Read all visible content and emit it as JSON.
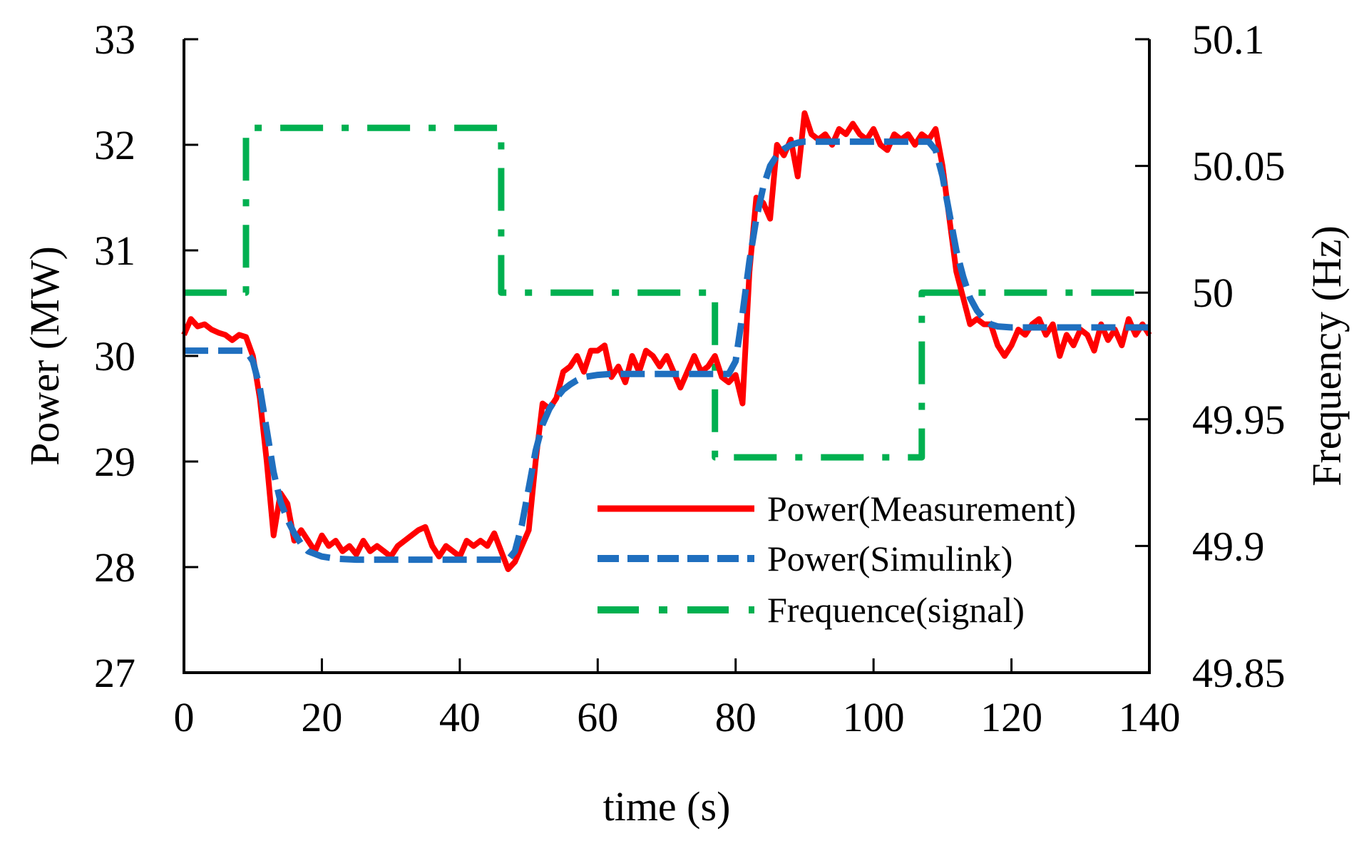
{
  "chart_data": {
    "type": "line",
    "title": "",
    "xlabel": "time (s)",
    "ylabel": "Power (MW)",
    "y2label": "Frequency (Hz)",
    "xlim": [
      0,
      140
    ],
    "ylim": [
      27,
      33
    ],
    "y2lim": [
      49.85,
      50.1
    ],
    "xticks": [
      0,
      20,
      40,
      60,
      80,
      100,
      120,
      140
    ],
    "xtick_labels": [
      "0",
      "20",
      "40",
      "60",
      "80",
      "100",
      "120",
      "140"
    ],
    "yticks": [
      27,
      28,
      29,
      30,
      31,
      32,
      33
    ],
    "ytick_labels": [
      "27",
      "28",
      "29",
      "30",
      "31",
      "32",
      "33"
    ],
    "y2ticks": [
      49.85,
      49.9,
      49.95,
      50,
      50.05,
      50.1
    ],
    "y2tick_labels": [
      "49.85",
      "49.9",
      "49.95",
      "50",
      "50.05",
      "50.1"
    ],
    "grid": false,
    "legend_position": "bottom-right",
    "series": [
      {
        "name": "Power(Measurement)",
        "axis": "left",
        "color": "#ff0000",
        "style": "solid",
        "x": [
          0,
          1,
          2,
          3,
          4,
          5,
          6,
          7,
          8,
          9,
          10,
          11,
          12,
          13,
          14,
          15,
          16,
          17,
          18,
          19,
          20,
          21,
          22,
          23,
          24,
          25,
          26,
          27,
          28,
          29,
          30,
          31,
          32,
          33,
          34,
          35,
          36,
          37,
          38,
          39,
          40,
          41,
          42,
          43,
          44,
          45,
          46,
          47,
          48,
          49,
          50,
          51,
          52,
          53,
          54,
          55,
          56,
          57,
          58,
          59,
          60,
          61,
          62,
          63,
          64,
          65,
          66,
          67,
          68,
          69,
          70,
          71,
          72,
          73,
          74,
          75,
          76,
          77,
          78,
          79,
          80,
          81,
          82,
          83,
          84,
          85,
          86,
          87,
          88,
          89,
          90,
          91,
          92,
          93,
          94,
          95,
          96,
          97,
          98,
          99,
          100,
          101,
          102,
          103,
          104,
          105,
          106,
          107,
          108,
          109,
          110,
          111,
          112,
          113,
          114,
          115,
          116,
          117,
          118,
          119,
          120,
          121,
          122,
          123,
          124,
          125,
          126,
          127,
          128,
          129,
          130,
          131,
          132,
          133,
          134,
          135,
          136,
          137,
          138,
          139,
          140
        ],
        "values": [
          30.2,
          30.35,
          30.28,
          30.3,
          30.25,
          30.22,
          30.2,
          30.15,
          30.2,
          30.18,
          30.0,
          29.6,
          29.0,
          28.3,
          28.7,
          28.6,
          28.25,
          28.35,
          28.25,
          28.15,
          28.3,
          28.2,
          28.25,
          28.15,
          28.2,
          28.12,
          28.25,
          28.15,
          28.2,
          28.15,
          28.1,
          28.2,
          28.25,
          28.3,
          28.35,
          28.38,
          28.2,
          28.1,
          28.2,
          28.15,
          28.1,
          28.25,
          28.2,
          28.25,
          28.2,
          28.32,
          28.15,
          27.98,
          28.05,
          28.2,
          28.35,
          29.0,
          29.55,
          29.5,
          29.6,
          29.85,
          29.9,
          30.0,
          29.85,
          30.05,
          30.05,
          30.1,
          29.8,
          29.9,
          29.75,
          30.0,
          29.85,
          30.05,
          30.0,
          29.9,
          30.0,
          29.85,
          29.7,
          29.85,
          30.0,
          29.85,
          29.9,
          30.0,
          29.8,
          29.75,
          29.82,
          29.55,
          30.8,
          31.5,
          31.45,
          31.3,
          32.0,
          31.9,
          32.05,
          31.7,
          32.3,
          32.1,
          32.05,
          32.1,
          32.0,
          32.15,
          32.1,
          32.2,
          32.1,
          32.05,
          32.15,
          32.0,
          31.95,
          32.1,
          32.05,
          32.1,
          32.0,
          32.1,
          32.05,
          32.15,
          31.8,
          31.3,
          30.8,
          30.55,
          30.3,
          30.35,
          30.3,
          30.3,
          30.1,
          30.0,
          30.1,
          30.25,
          30.2,
          30.3,
          30.35,
          30.2,
          30.3,
          30.0,
          30.2,
          30.1,
          30.25,
          30.2,
          30.05,
          30.3,
          30.15,
          30.25,
          30.1,
          30.35,
          30.2,
          30.3,
          30.2
        ]
      },
      {
        "name": "Power(Simulink)",
        "axis": "left",
        "color": "#1f6fbf",
        "style": "dashed",
        "x": [
          0,
          5,
          9,
          10,
          11,
          12,
          13,
          14,
          15,
          16,
          17,
          18,
          20,
          22,
          25,
          30,
          40,
          47,
          48,
          49,
          50,
          51,
          52,
          53,
          54,
          55,
          56,
          57,
          58,
          60,
          62,
          65,
          70,
          75,
          79,
          80,
          81,
          82,
          83,
          84,
          85,
          86,
          87,
          88,
          89,
          90,
          95,
          100,
          105,
          108,
          109,
          110,
          111,
          112,
          113,
          114,
          115,
          116,
          117,
          118,
          120,
          125,
          130,
          140
        ],
        "values": [
          30.05,
          30.05,
          30.05,
          29.95,
          29.7,
          29.3,
          28.9,
          28.62,
          28.45,
          28.32,
          28.22,
          28.15,
          28.1,
          28.08,
          28.07,
          28.07,
          28.07,
          28.07,
          28.15,
          28.4,
          28.75,
          29.1,
          29.35,
          29.5,
          29.6,
          29.68,
          29.73,
          29.77,
          29.8,
          29.82,
          29.83,
          29.83,
          29.83,
          29.83,
          29.83,
          29.95,
          30.4,
          30.9,
          31.3,
          31.6,
          31.8,
          31.9,
          31.96,
          32.0,
          32.02,
          32.03,
          32.03,
          32.03,
          32.03,
          32.03,
          31.95,
          31.7,
          31.35,
          31.0,
          30.75,
          30.55,
          30.43,
          30.35,
          30.3,
          30.28,
          30.27,
          30.27,
          30.27,
          30.27
        ]
      },
      {
        "name": "Frequence(signal)",
        "axis": "right",
        "color": "#00b050",
        "style": "dashdot",
        "x": [
          0,
          9,
          9,
          46,
          46,
          77,
          77,
          107,
          107,
          140
        ],
        "values": [
          50.0,
          50.0,
          50.065,
          50.065,
          50.0,
          50.0,
          49.935,
          49.935,
          50.0,
          50.0
        ]
      }
    ]
  }
}
